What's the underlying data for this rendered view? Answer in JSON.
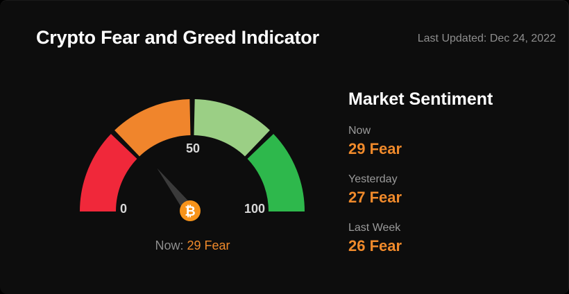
{
  "header": {
    "title": "Crypto Fear and Greed Indicator",
    "last_updated": "Last Updated: Dec 24, 2022"
  },
  "gauge": {
    "value": 29,
    "min_label": "0",
    "mid_label": "50",
    "max_label": "100",
    "caption_prefix": "Now:",
    "caption_value": "29 Fear",
    "center_icon": "bitcoin-icon",
    "colors": {
      "extreme_fear": "#f0283a",
      "fear": "#f0852c",
      "greed": "#9bcf85",
      "extreme_greed": "#2eb84c",
      "needle": "#3a3a3a",
      "hub": "#f7931a"
    }
  },
  "sentiment": {
    "title": "Market Sentiment",
    "rows": [
      {
        "label": "Now",
        "value": "29 Fear"
      },
      {
        "label": "Yesterday",
        "value": "27 Fear"
      },
      {
        "label": "Last Week",
        "value": "26 Fear"
      }
    ]
  },
  "accent_color": "#f08a2b"
}
